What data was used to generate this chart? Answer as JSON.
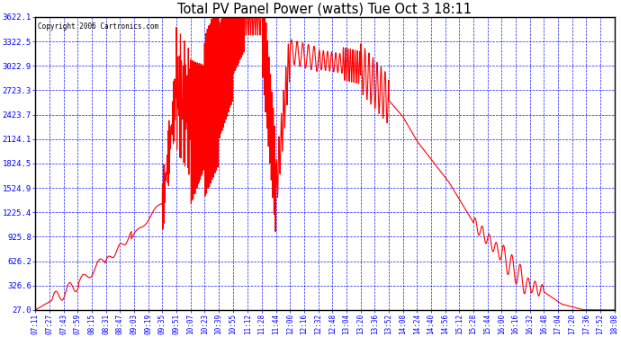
{
  "title": "Total PV Panel Power (watts) Tue Oct 3 18:11",
  "copyright": "Copyright 2006 Cartronics.com",
  "line_color": "#FF0000",
  "bg_color": "#FFFFFF",
  "plot_bg_color": "#FFFFFF",
  "grid_color": "#0000FF",
  "tick_label_color": "#0000FF",
  "title_color": "#000000",
  "yticks": [
    27.0,
    326.6,
    626.2,
    925.8,
    1225.4,
    1524.9,
    1824.5,
    2124.1,
    2423.7,
    2723.3,
    3022.9,
    3322.5,
    3622.1
  ],
  "ymin": 27.0,
  "ymax": 3622.1,
  "xtick_labels": [
    "07:11",
    "07:27",
    "07:43",
    "07:59",
    "08:15",
    "08:31",
    "08:47",
    "09:03",
    "09:19",
    "09:35",
    "09:51",
    "10:07",
    "10:23",
    "10:39",
    "10:55",
    "11:12",
    "11:28",
    "11:44",
    "12:00",
    "12:16",
    "12:32",
    "12:48",
    "13:04",
    "13:20",
    "13:36",
    "13:52",
    "14:08",
    "14:24",
    "14:40",
    "14:56",
    "15:12",
    "15:28",
    "15:44",
    "16:00",
    "16:16",
    "16:32",
    "16:48",
    "17:04",
    "17:20",
    "17:36",
    "17:52",
    "18:08"
  ],
  "figwidth": 6.9,
  "figheight": 3.75,
  "dpi": 100
}
